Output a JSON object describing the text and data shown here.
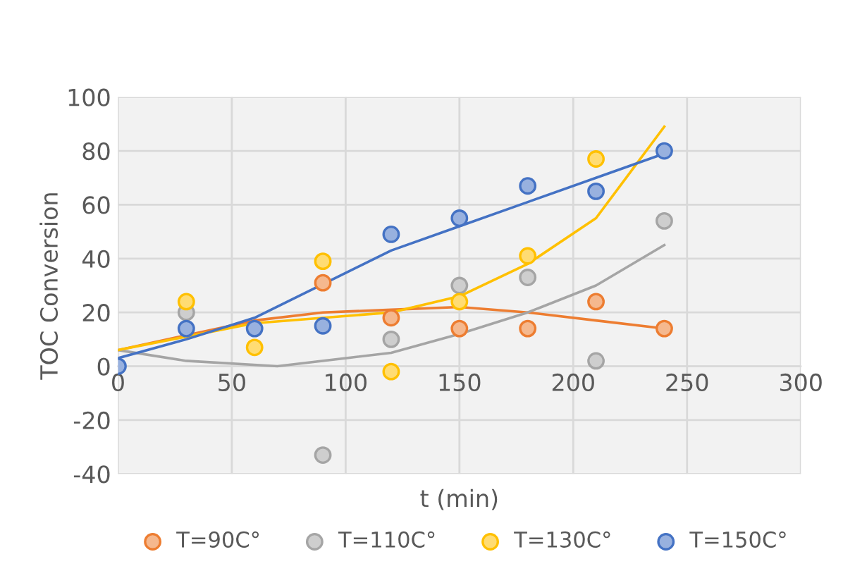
{
  "chart_data": {
    "type": "scatter",
    "xlabel": "t (min)",
    "ylabel": "TOC Conversion",
    "x": [
      0,
      30,
      60,
      90,
      120,
      150,
      180,
      210,
      240
    ],
    "series": [
      {
        "name": "T=90C°",
        "color": "#ed7d31",
        "values": [
          null,
          null,
          null,
          31,
          18,
          14,
          14,
          24,
          14
        ]
      },
      {
        "name": "T=110C°",
        "color": "#a5a5a5",
        "values": [
          null,
          20,
          null,
          -33,
          10,
          30,
          33,
          2,
          54
        ]
      },
      {
        "name": "T=130C°",
        "color": "#ffc000",
        "values": [
          null,
          24,
          7,
          39,
          -2,
          24,
          41,
          77,
          null
        ]
      },
      {
        "name": "T=150C°",
        "color": "#4472c4",
        "values": [
          0,
          14,
          14,
          15,
          49,
          55,
          67,
          65,
          80
        ]
      },
      {
        "type": "line",
        "marker": "none",
        "color": "#ed7d31",
        "x": [
          0,
          60,
          90,
          120,
          150,
          180,
          210,
          240
        ],
        "values": [
          6,
          17,
          20,
          21,
          22,
          20,
          17,
          14
        ]
      },
      {
        "type": "line",
        "marker": "none",
        "color": "#a5a5a5",
        "x": [
          0,
          30,
          70,
          120,
          150,
          180,
          210,
          240
        ],
        "values": [
          6,
          2,
          0,
          5,
          12,
          20,
          30,
          45
        ]
      },
      {
        "type": "line",
        "marker": "none",
        "color": "#ffc000",
        "x": [
          0,
          60,
          120,
          150,
          180,
          210,
          240
        ],
        "values": [
          6,
          16,
          20,
          26,
          38,
          55,
          89
        ]
      },
      {
        "type": "line",
        "marker": "none",
        "color": "#4472c4",
        "x": [
          0,
          30,
          60,
          120,
          150,
          180,
          210,
          240
        ],
        "values": [
          3,
          10,
          18,
          43,
          52,
          61,
          70,
          79
        ]
      }
    ],
    "xlim": [
      0,
      300
    ],
    "xticks": [
      0,
      50,
      100,
      150,
      200,
      250,
      300
    ],
    "ylim": [
      -40,
      100
    ],
    "yticks": [
      -40,
      -20,
      0,
      20,
      40,
      60,
      80,
      100
    ],
    "grid": true,
    "legend": "bottom",
    "marker": "circle",
    "line_style": "solid"
  }
}
